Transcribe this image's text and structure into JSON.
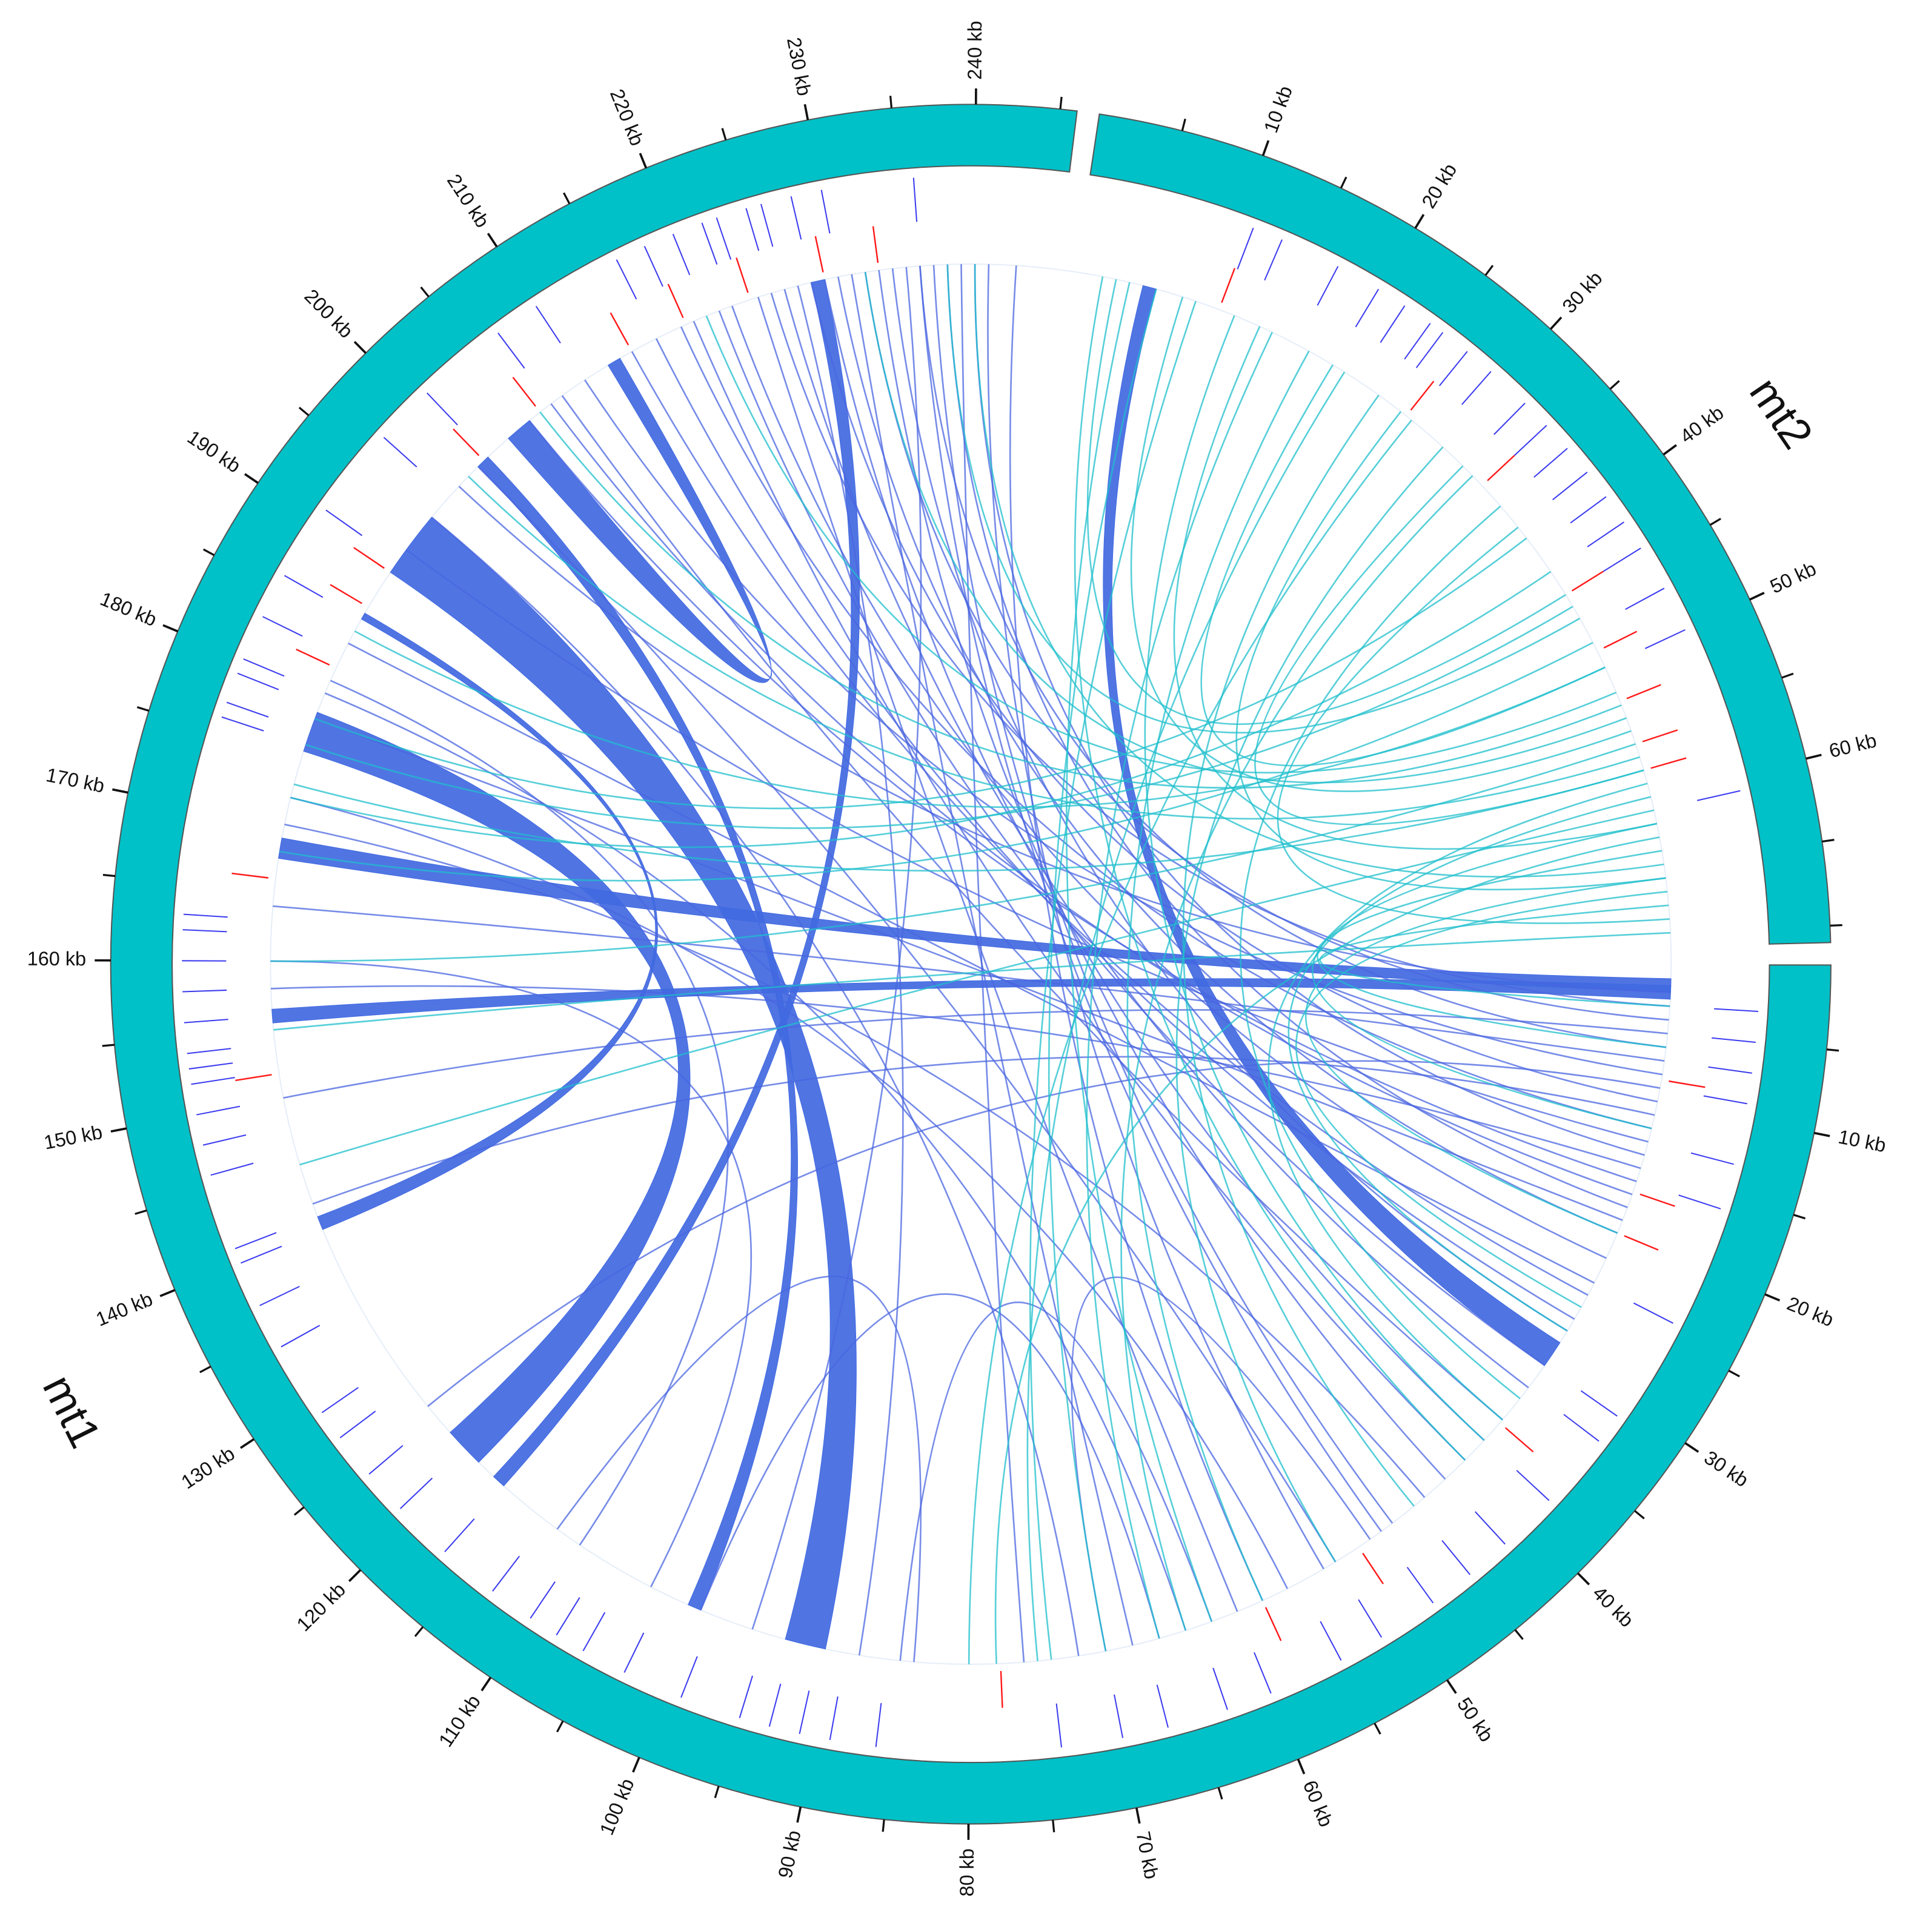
{
  "chart_data": {
    "type": "circos",
    "chromosomes": [
      {
        "name": "mt2",
        "length": 71,
        "color": "#00c1c8",
        "minor_tick_step": 5,
        "ticks": [
          {
            "value": 10,
            "label": "10 kb"
          },
          {
            "value": 20,
            "label": "20 kb"
          },
          {
            "value": 30,
            "label": "30 kb"
          },
          {
            "value": 40,
            "label": "40 kb"
          },
          {
            "value": 50,
            "label": "50 kb"
          },
          {
            "value": 60,
            "label": "60 kb"
          }
        ]
      },
      {
        "name": "mt1",
        "length": 246,
        "color": "#00c1c8",
        "minor_tick_step": 5,
        "ticks": [
          {
            "value": 10,
            "label": "10 kb"
          },
          {
            "value": 20,
            "label": "20 kb"
          },
          {
            "value": 30,
            "label": "30 kb"
          },
          {
            "value": 40,
            "label": "40 kb"
          },
          {
            "value": 50,
            "label": "50 kb"
          },
          {
            "value": 60,
            "label": "60 kb"
          },
          {
            "value": 70,
            "label": "70 kb"
          },
          {
            "value": 80,
            "label": "80 kb"
          },
          {
            "value": 90,
            "label": "90 kb"
          },
          {
            "value": 100,
            "label": "100 kb"
          },
          {
            "value": 110,
            "label": "110 kb"
          },
          {
            "value": 120,
            "label": "120 kb"
          },
          {
            "value": 130,
            "label": "130 kb"
          },
          {
            "value": 140,
            "label": "140 kb"
          },
          {
            "value": 150,
            "label": "150 kb"
          },
          {
            "value": 160,
            "label": "160 kb"
          },
          {
            "value": 170,
            "label": "170 kb"
          },
          {
            "value": 180,
            "label": "180 kb"
          },
          {
            "value": 190,
            "label": "190 kb"
          },
          {
            "value": 200,
            "label": "200 kb"
          },
          {
            "value": 210,
            "label": "210 kb"
          },
          {
            "value": 220,
            "label": "220 kb"
          },
          {
            "value": 230,
            "label": "230 kb"
          },
          {
            "value": 240,
            "label": "240 kb"
          }
        ]
      }
    ],
    "genes": {
      "color": "#3b3bf0",
      "mt1": [
        3,
        5,
        7,
        9,
        13,
        16,
        24,
        31,
        33,
        38,
        42,
        45,
        48,
        52,
        55,
        60,
        63,
        67,
        70,
        74,
        86,
        89,
        91,
        93,
        95,
        99,
        103,
        106,
        108,
        110,
        113,
        117,
        121,
        124,
        127,
        129,
        134,
        137,
        140,
        141,
        146,
        148,
        150,
        152,
        153,
        154,
        156,
        158,
        160,
        162,
        163,
        176,
        177,
        179,
        180,
        183,
        186,
        191,
        197,
        201,
        207,
        210,
        216,
        218,
        220,
        222,
        223,
        225,
        226,
        228,
        230,
        236
      ],
      "mt2": [
        11,
        13,
        17,
        20,
        22,
        24,
        25,
        27,
        29,
        32,
        34,
        36,
        38,
        40,
        42,
        44,
        47,
        50,
        61
      ]
    },
    "markers": {
      "color": "#ff1a1a",
      "mt1": [
        8.4,
        16.8,
        20,
        36.3,
        50,
        58,
        77.7,
        151.8,
        166,
        182,
        187,
        190,
        200.6,
        206,
        214,
        218.4,
        223.4,
        229,
        233
      ],
      "mt2": [
        10.8,
        26.5,
        34,
        44,
        48.7,
        52.7,
        56,
        58
      ]
    },
    "ribbons": {
      "color": "#4169e1",
      "spans": [
        [
          "mt1",
          175.5,
          178.5,
          "mt1",
          119.5,
          122.5
        ],
        [
          "mt1",
          190,
          195,
          "mt1",
          90.5,
          93.5
        ],
        [
          "mt1",
          203,
          205,
          "mt1",
          212,
          213
        ],
        [
          "mt1",
          167.5,
          169,
          "mt1",
          1,
          2
        ],
        [
          "mt1",
          29,
          31,
          "mt2",
          5,
          6
        ],
        [
          "mt1",
          155.5,
          156.5,
          "mt1",
          1.5,
          2.5
        ],
        [
          "mt1",
          117,
          118,
          "mt1",
          228,
          229
        ],
        [
          "mt1",
          100,
          101,
          "mt1",
          200,
          201
        ],
        [
          "mt1",
          140,
          141,
          "mt1",
          186,
          186.5
        ]
      ]
    },
    "links": [
      {
        "color": "#4a66e0",
        "pairs": [
          [
            "mt1",
            3,
            "mt1",
            225
          ],
          [
            "mt1",
            4,
            "mt1",
            232
          ],
          [
            "mt1",
            6,
            "mt1",
            236
          ],
          [
            "mt1",
            8,
            "mt1",
            210
          ],
          [
            "mt1",
            10,
            "mt1",
            228
          ],
          [
            "mt1",
            12,
            "mt1",
            218
          ],
          [
            "mt1",
            14,
            "mt1",
            240
          ],
          [
            "mt1",
            16,
            "mt1",
            205
          ],
          [
            "mt1",
            18,
            "mt1",
            238
          ],
          [
            "mt1",
            20,
            "mt1",
            230
          ],
          [
            "mt1",
            22,
            "mt1",
            222
          ],
          [
            "mt1",
            25,
            "mt1",
            214
          ],
          [
            "mt1",
            28,
            "mt1",
            234
          ],
          [
            "mt1",
            33,
            "mt1",
            226
          ],
          [
            "mt1",
            36,
            "mt1",
            208
          ],
          [
            "mt1",
            40,
            "mt1",
            219
          ],
          [
            "mt1",
            44,
            "mt1",
            170
          ],
          [
            "mt1",
            48,
            "mt1",
            236
          ],
          [
            "mt1",
            52,
            "mt1",
            200
          ],
          [
            "mt1",
            56,
            "mt1",
            172
          ],
          [
            "mt1",
            60,
            "mt1",
            224
          ],
          [
            "mt1",
            64,
            "mt1",
            180
          ],
          [
            "mt1",
            68,
            "mt1",
            231
          ],
          [
            "mt1",
            72,
            "mt1",
            195
          ],
          [
            "mt1",
            76,
            "mt1",
            239
          ],
          [
            "mt1",
            84,
            "mt1",
            112
          ],
          [
            "mt1",
            88,
            "mt1",
            227
          ],
          [
            "mt1",
            96,
            "mt1",
            235
          ],
          [
            "mt1",
            104,
            "mt1",
            160
          ],
          [
            "mt1",
            110,
            "mt1",
            181
          ],
          [
            "mt1",
            125,
            "mt1",
            9
          ],
          [
            "mt1",
            142,
            "mt1",
            11
          ],
          [
            "mt1",
            150,
            "mt1",
            5
          ],
          [
            "mt1",
            158,
            "mt1",
            15
          ],
          [
            "mt1",
            164,
            "mt1",
            7
          ],
          [
            "mt1",
            178,
            "mt1",
            19
          ],
          [
            "mt1",
            184,
            "mt1",
            24
          ],
          [
            "mt1",
            192,
            "mt1",
            13
          ],
          [
            "mt1",
            198,
            "mt1",
            2
          ],
          [
            "mt1",
            207,
            "mt1",
            17
          ],
          [
            "mt1",
            216,
            "mt1",
            27
          ],
          [
            "mt1",
            221,
            "mt1",
            31
          ],
          [
            "mt1",
            229,
            "mt1",
            38
          ],
          [
            "mt1",
            233,
            "mt1",
            42
          ],
          [
            "mt1",
            237,
            "mt1",
            47
          ],
          [
            "mt1",
            241,
            "mt1",
            53
          ],
          [
            "mt1",
            243,
            "mt1",
            58
          ],
          [
            "mt1",
            62,
            "mt1",
            85
          ],
          [
            "mt1",
            66,
            "mt1",
            100
          ],
          [
            "mt1",
            70,
            "mt1",
            49
          ]
        ]
      },
      {
        "color": "#1fbfcc",
        "pairs": [
          [
            "mt2",
            2,
            "mt1",
            40
          ],
          [
            "mt2",
            4,
            "mt1",
            62
          ],
          [
            "mt2",
            6,
            "mt1",
            70
          ],
          [
            "mt2",
            9,
            "mt1",
            74
          ],
          [
            "mt2",
            12,
            "mt1",
            38
          ],
          [
            "mt2",
            15,
            "mt1",
            66
          ],
          [
            "mt2",
            18,
            "mt1",
            58
          ],
          [
            "mt2",
            21,
            "mt1",
            75
          ],
          [
            "mt2",
            24,
            "mt1",
            45
          ],
          [
            "mt2",
            27,
            "mt1",
            80
          ],
          [
            "mt2",
            30,
            "mt1",
            52
          ],
          [
            "mt2",
            33,
            "mt1",
            64
          ],
          [
            "mt2",
            36,
            "mt1",
            34
          ],
          [
            "mt2",
            39,
            "mt1",
            178
          ],
          [
            "mt2",
            42,
            "mt1",
            172
          ],
          [
            "mt2",
            45,
            "mt1",
            176
          ],
          [
            "mt2",
            48,
            "mt1",
            168
          ],
          [
            "mt2",
            50,
            "mt1",
            185
          ],
          [
            "mt2",
            52,
            "mt1",
            220
          ],
          [
            "mt2",
            54,
            "mt1",
            232
          ],
          [
            "mt2",
            56,
            "mt1",
            160
          ],
          [
            "mt2",
            58,
            "mt1",
            173
          ],
          [
            "mt2",
            60,
            "mt1",
            28
          ],
          [
            "mt2",
            62,
            "mt1",
            12
          ],
          [
            "mt2",
            64,
            "mt1",
            6
          ],
          [
            "mt2",
            66,
            "mt1",
            20
          ],
          [
            "mt2",
            68,
            "mt1",
            3
          ],
          [
            "mt2",
            70,
            "mt1",
            155
          ],
          [
            "mt2",
            3,
            "mt2",
            44
          ],
          [
            "mt2",
            8,
            "mt2",
            55
          ],
          [
            "mt2",
            14,
            "mt2",
            62
          ],
          [
            "mt2",
            20,
            "mt2",
            50
          ],
          [
            "mt2",
            26,
            "mt2",
            66
          ],
          [
            "mt2",
            32,
            "mt2",
            58
          ],
          [
            "mt2",
            38,
            "mt2",
            69
          ],
          [
            "mt2",
            46,
            "mt1",
            238
          ],
          [
            "mt2",
            53,
            "mt1",
            206
          ],
          [
            "mt2",
            57,
            "mt1",
            199
          ],
          [
            "mt2",
            61,
            "mt1",
            145
          ],
          [
            "mt2",
            65,
            "mt1",
            240
          ],
          [
            "mt2",
            67,
            "mt1",
            26
          ],
          [
            "mt2",
            59,
            "mt1",
            36
          ],
          [
            "mt2",
            63,
            "mt1",
            78
          ]
        ]
      }
    ]
  }
}
